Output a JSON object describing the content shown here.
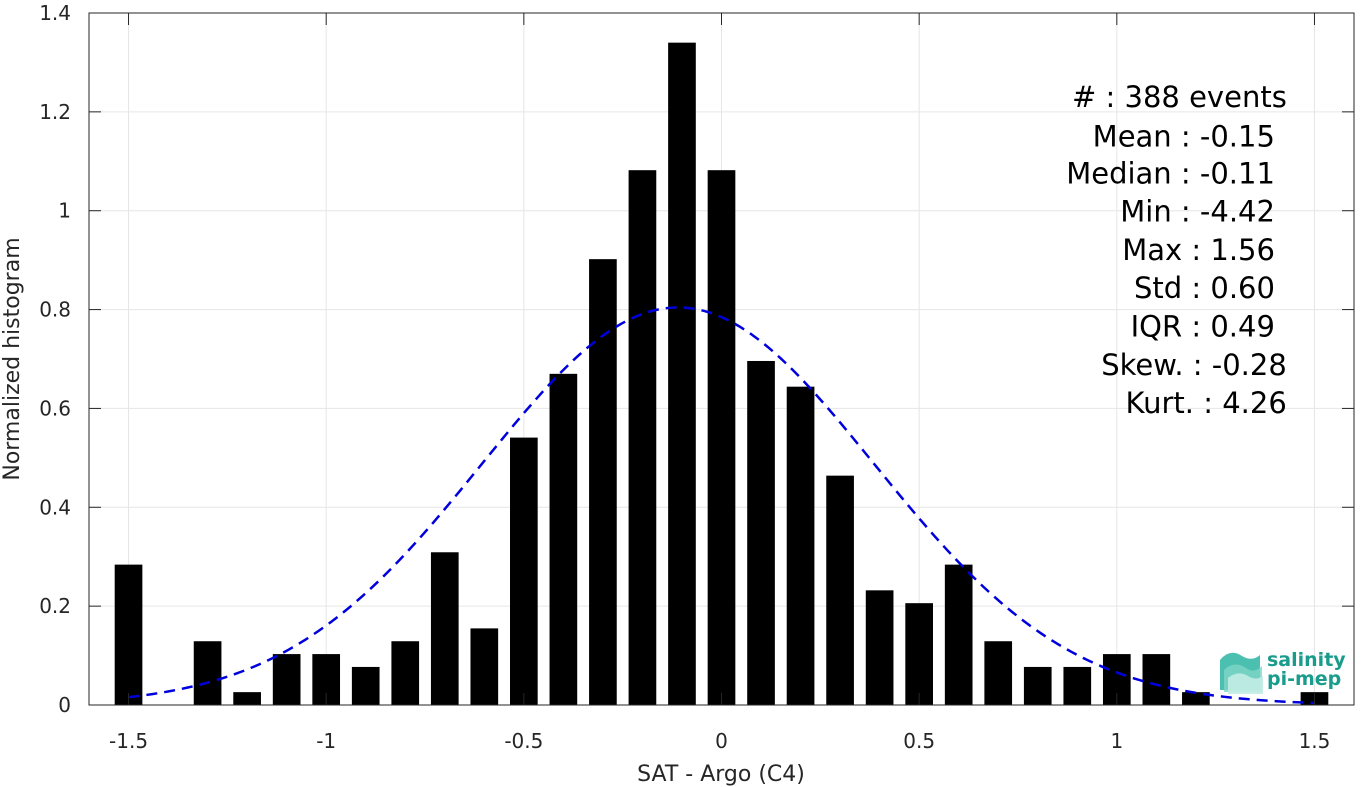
{
  "chart_data": {
    "type": "bar",
    "xlabel": "SAT - Argo (C4)",
    "ylabel": "Normalized histogram",
    "xlim": [
      -1.6,
      1.6
    ],
    "ylim": [
      0,
      1.4
    ],
    "xticks": [
      -1.5,
      -1,
      -0.5,
      0,
      0.5,
      1,
      1.5
    ],
    "xtick_labels": [
      "-1.5",
      "-1",
      "-0.5",
      "0",
      "0.5",
      "1",
      "1.5"
    ],
    "yticks": [
      0,
      0.2,
      0.4,
      0.6,
      0.8,
      1,
      1.2,
      1.4
    ],
    "ytick_labels": [
      "0",
      "0.2",
      "0.4",
      "0.6",
      "0.8",
      "1",
      "1.2",
      "1.4"
    ],
    "grid": true,
    "bar_width": 0.07,
    "bar_color": "#000000",
    "bars": [
      {
        "x": -1.5,
        "value": 0.284
      },
      {
        "x": -1.3,
        "value": 0.129
      },
      {
        "x": -1.2,
        "value": 0.026
      },
      {
        "x": -1.1,
        "value": 0.103
      },
      {
        "x": -1.0,
        "value": 0.103
      },
      {
        "x": -0.9,
        "value": 0.077
      },
      {
        "x": -0.8,
        "value": 0.129
      },
      {
        "x": -0.7,
        "value": 0.309
      },
      {
        "x": -0.6,
        "value": 0.155
      },
      {
        "x": -0.5,
        "value": 0.541
      },
      {
        "x": -0.4,
        "value": 0.67
      },
      {
        "x": -0.3,
        "value": 0.902
      },
      {
        "x": -0.2,
        "value": 1.082
      },
      {
        "x": -0.1,
        "value": 1.34
      },
      {
        "x": 0.0,
        "value": 1.082
      },
      {
        "x": 0.1,
        "value": 0.696
      },
      {
        "x": 0.2,
        "value": 0.644
      },
      {
        "x": 0.3,
        "value": 0.464
      },
      {
        "x": 0.4,
        "value": 0.232
      },
      {
        "x": 0.5,
        "value": 0.206
      },
      {
        "x": 0.6,
        "value": 0.284
      },
      {
        "x": 0.7,
        "value": 0.129
      },
      {
        "x": 0.8,
        "value": 0.077
      },
      {
        "x": 0.9,
        "value": 0.077
      },
      {
        "x": 1.0,
        "value": 0.103
      },
      {
        "x": 1.1,
        "value": 0.103
      },
      {
        "x": 1.2,
        "value": 0.026
      },
      {
        "x": 1.5,
        "value": 0.026
      }
    ],
    "fit_curve": {
      "type": "normal",
      "mean": -0.11,
      "std": 0.496,
      "x_range": [
        -1.5,
        1.5
      ],
      "color": "#0000dd",
      "style": "dashed"
    },
    "stats": [
      {
        "label": "#  : 388 events",
        "x": 1.43
      },
      {
        "label": "Mean : -0.15",
        "x": 1.4
      },
      {
        "label": "Median : -0.11",
        "x": 1.4
      },
      {
        "label": "Min : -4.42",
        "x": 1.4
      },
      {
        "label": "Max : 1.56",
        "x": 1.4
      },
      {
        "label": "Std : 0.60",
        "x": 1.4
      },
      {
        "label": "IQR : 0.49",
        "x": 1.4
      },
      {
        "label": "Skew. : -0.28",
        "x": 1.43
      },
      {
        "label": "Kurt. : 4.26",
        "x": 1.43
      }
    ],
    "stats_y": [
      1.21,
      1.13,
      1.055,
      0.978,
      0.9,
      0.823,
      0.746,
      0.668,
      0.591
    ],
    "logo": {
      "line1": "salinity",
      "line2": "pi-mep",
      "color": "#1a9c8c"
    }
  }
}
